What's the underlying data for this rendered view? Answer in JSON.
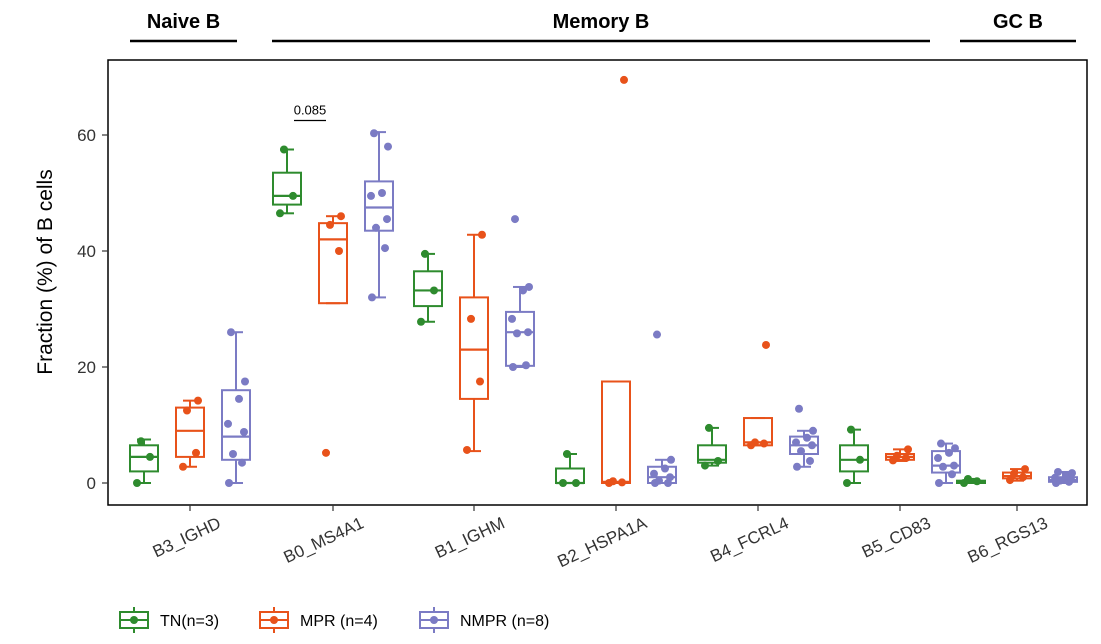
{
  "chart_data": {
    "type": "box",
    "ylabel": "Fraction (%) of B cells",
    "ylim": [
      -3.5,
      72
    ],
    "yticks": [
      0,
      20,
      40,
      60
    ],
    "ytick_labels": [
      "0",
      "20",
      "40",
      "60"
    ],
    "categories": [
      "B3_IGHD",
      "B0_MS4A1",
      "B1_IGHM",
      "B2_HSPA1A",
      "B4_FCRL4",
      "B5_CD83",
      "B6_RGS13"
    ],
    "category_groups": [
      {
        "name": "Naive B",
        "categories": [
          "B3_IGHD"
        ]
      },
      {
        "name": "Memory B",
        "categories": [
          "B0_MS4A1",
          "B1_IGHM",
          "B2_HSPA1A",
          "B4_FCRL4",
          "B5_CD83"
        ]
      },
      {
        "name": "GC B",
        "categories": [
          "B6_RGS13"
        ]
      }
    ],
    "legend_position": "bottom-left",
    "grid": false,
    "series": [
      {
        "name": "TN(n=3)",
        "color": "#2e8b2e",
        "boxes": [
          {
            "q1": 2,
            "median": 4.5,
            "q3": 6.5,
            "whisker_low": 0,
            "whisker_high": 7.5,
            "points": [
              0,
              4.5,
              7.2
            ]
          },
          {
            "q1": 48,
            "median": 49.5,
            "q3": 53.5,
            "whisker_low": 46.5,
            "whisker_high": 57.5,
            "points": [
              46.5,
              49.5,
              57.5
            ]
          },
          {
            "q1": 30.5,
            "median": 33.2,
            "q3": 36.5,
            "whisker_low": 27.8,
            "whisker_high": 39.5,
            "points": [
              27.8,
              33.2,
              39.5
            ]
          },
          {
            "q1": 0,
            "median": 0,
            "q3": 2.5,
            "whisker_low": 0,
            "whisker_high": 5,
            "points": [
              0,
              0,
              5
            ]
          },
          {
            "q1": 3.5,
            "median": 4,
            "q3": 6.5,
            "whisker_low": 3,
            "whisker_high": 9.5,
            "points": [
              3,
              3.8,
              9.5
            ]
          },
          {
            "q1": 2,
            "median": 4,
            "q3": 6.5,
            "whisker_low": 0,
            "whisker_high": 9.2,
            "points": [
              0,
              4,
              9.2
            ]
          },
          {
            "q1": 0,
            "median": 0.3,
            "q3": 0.4,
            "whisker_low": 0,
            "whisker_high": 0.7,
            "points": [
              0,
              0.3,
              0.7
            ]
          }
        ]
      },
      {
        "name": "MPR (n=4)",
        "color": "#e8521a",
        "boxes": [
          {
            "q1": 4.5,
            "median": 9,
            "q3": 13,
            "whisker_low": 2.8,
            "whisker_high": 14.2,
            "points": [
              2.8,
              5.2,
              12.5,
              14.2
            ]
          },
          {
            "q1": 31,
            "median": 42,
            "q3": 44.8,
            "whisker_low": 31,
            "whisker_high": 46,
            "points": [
              5.2,
              40,
              44.5,
              46
            ]
          },
          {
            "q1": 14.5,
            "median": 23,
            "q3": 32,
            "whisker_low": 5.5,
            "whisker_high": 42.8,
            "points": [
              5.7,
              17.5,
              28.3,
              42.8
            ]
          },
          {
            "q1": 0,
            "median": 0.2,
            "q3": 17.5,
            "whisker_low": 0,
            "whisker_high": 17.5,
            "points": [
              0,
              0.1,
              0.3,
              69.5
            ]
          },
          {
            "q1": 6.5,
            "median": 7,
            "q3": 11.2,
            "whisker_low": 6.5,
            "whisker_high": 11.2,
            "points": [
              6.5,
              6.8,
              7,
              23.8
            ]
          },
          {
            "q1": 4,
            "median": 4.5,
            "q3": 5,
            "whisker_low": 3.8,
            "whisker_high": 5.8,
            "points": [
              3.9,
              4.3,
              4.7,
              5.8
            ]
          },
          {
            "q1": 0.8,
            "median": 1.2,
            "q3": 1.8,
            "whisker_low": 0.4,
            "whisker_high": 2.4,
            "points": [
              0.5,
              1,
              1.6,
              2.4
            ]
          }
        ]
      },
      {
        "name": "NMPR (n=8)",
        "color": "#7b7bc4",
        "boxes": [
          {
            "q1": 4,
            "median": 8,
            "q3": 16,
            "whisker_low": 0,
            "whisker_high": 26,
            "points": [
              0,
              3.5,
              5,
              8.8,
              10.2,
              14.5,
              17.5,
              26
            ]
          },
          {
            "q1": 43.5,
            "median": 47.5,
            "q3": 52,
            "whisker_low": 32,
            "whisker_high": 60.5,
            "points": [
              32,
              40.5,
              44,
              45.5,
              49.5,
              50,
              58,
              60.3
            ]
          },
          {
            "q1": 20.2,
            "median": 26,
            "q3": 29.5,
            "whisker_low": 20,
            "whisker_high": 33.8,
            "points": [
              20,
              20.3,
              25.8,
              26,
              28.3,
              33.2,
              33.8,
              45.5
            ]
          },
          {
            "q1": 0,
            "median": 1,
            "q3": 2.8,
            "whisker_low": 0,
            "whisker_high": 4,
            "points": [
              0,
              0,
              0.4,
              1,
              1.6,
              2.5,
              4,
              25.6
            ]
          },
          {
            "q1": 5,
            "median": 6.5,
            "q3": 8,
            "whisker_low": 2.8,
            "whisker_high": 9,
            "points": [
              2.8,
              3.8,
              5.5,
              6.5,
              7,
              7.8,
              9,
              12.8
            ]
          },
          {
            "q1": 1.8,
            "median": 3,
            "q3": 5.5,
            "whisker_low": 0,
            "whisker_high": 6.8,
            "points": [
              0,
              1.5,
              2.8,
              3,
              4.3,
              5.2,
              6,
              6.8
            ]
          },
          {
            "q1": 0.2,
            "median": 0.5,
            "q3": 1,
            "whisker_low": 0,
            "whisker_high": 1.9,
            "points": [
              0,
              0.2,
              0.4,
              0.6,
              0.9,
              1.2,
              1.7,
              1.9
            ]
          }
        ]
      }
    ],
    "annotations": [
      {
        "text": "0.085",
        "category": "B0_MS4A1",
        "y": 62.5
      }
    ]
  }
}
